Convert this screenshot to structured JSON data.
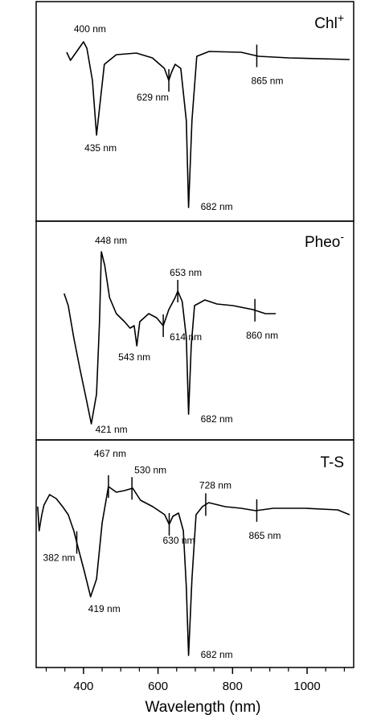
{
  "chart_data": [
    {
      "type": "line",
      "title": "Chl",
      "title_superscript": "+",
      "color": "#000000",
      "xlim": [
        273,
        1125
      ],
      "ylim": [
        0,
        273
      ],
      "x": [
        355,
        365,
        400,
        409,
        424,
        435,
        456,
        488,
        542,
        585,
        617,
        629,
        636,
        646,
        661,
        676,
        682,
        691,
        704,
        737,
        823,
        870,
        952,
        1114
      ],
      "values": [
        210,
        200,
        223,
        215,
        175,
        107,
        195,
        207,
        209,
        203,
        190,
        175,
        185,
        195,
        190,
        125,
        17,
        125,
        205,
        211,
        210,
        205,
        203,
        201
      ],
      "annotations": [
        {
          "label": "400 nm",
          "x": 400,
          "tick": false
        },
        {
          "label": "435 nm",
          "x": 435,
          "tick": false
        },
        {
          "label": "629 nm",
          "x": 629,
          "tick": true
        },
        {
          "label": "682 nm",
          "x": 682,
          "tick": false
        },
        {
          "label": "865 nm",
          "x": 865,
          "tick": true
        }
      ]
    },
    {
      "type": "line",
      "title": "Pheo",
      "title_superscript": "-",
      "color": "#000000",
      "xlim": [
        273,
        1125
      ],
      "ylim": [
        0,
        272
      ],
      "x": [
        348,
        359,
        374,
        391,
        409,
        421,
        435,
        443,
        448,
        457,
        470,
        488,
        510,
        525,
        536,
        543,
        551,
        575,
        596,
        614,
        629,
        646,
        653,
        665,
        676,
        682,
        689,
        698,
        726,
        758,
        801,
        855,
        888,
        916
      ],
      "values": [
        182,
        167,
        127,
        87,
        47,
        20,
        57,
        147,
        234,
        217,
        177,
        157,
        147,
        139,
        142,
        117,
        147,
        157,
        152,
        142,
        162,
        177,
        185,
        172,
        127,
        32,
        117,
        167,
        174,
        169,
        167,
        162,
        157,
        157
      ],
      "annotations": [
        {
          "label": "448 nm",
          "x": 448,
          "tick": false
        },
        {
          "label": "421 nm",
          "x": 421,
          "tick": false
        },
        {
          "label": "543 nm",
          "x": 543,
          "tick": false
        },
        {
          "label": "614 nm",
          "x": 614,
          "tick": true
        },
        {
          "label": "653 nm",
          "x": 653,
          "tick": true
        },
        {
          "label": "682 nm",
          "x": 682,
          "tick": false
        },
        {
          "label": "860 nm",
          "x": 860,
          "tick": true
        }
      ]
    },
    {
      "type": "line",
      "title": "T-S",
      "color": "#000000",
      "xlim": [
        273,
        1125
      ],
      "ylim": [
        0,
        283
      ],
      "x": [
        277,
        281,
        288,
        294,
        309,
        327,
        344,
        359,
        374,
        385,
        402,
        419,
        435,
        450,
        467,
        488,
        510,
        532,
        553,
        586,
        618,
        630,
        640,
        655,
        668,
        676,
        682,
        691,
        702,
        719,
        736,
        780,
        823,
        862,
        909,
        995,
        1082,
        1114
      ],
      "values": [
        200,
        170,
        190,
        202,
        215,
        210,
        200,
        190,
        170,
        150,
        120,
        88,
        110,
        180,
        225,
        218,
        220,
        223,
        208,
        200,
        190,
        178,
        188,
        192,
        170,
        100,
        15,
        110,
        190,
        200,
        205,
        200,
        198,
        195,
        198,
        198,
        196,
        190
      ],
      "annotations": [
        {
          "label": "382 nm",
          "x": 382,
          "tick": true
        },
        {
          "label": "419 nm",
          "x": 419,
          "tick": false
        },
        {
          "label": "467 nm",
          "x": 467,
          "tick": true
        },
        {
          "label": "530 nm",
          "x": 530,
          "tick": true
        },
        {
          "label": "630 nm",
          "x": 630,
          "tick": true
        },
        {
          "label": "682 nm",
          "x": 682,
          "tick": false
        },
        {
          "label": "728 nm",
          "x": 728,
          "tick": true
        },
        {
          "label": "865 nm",
          "x": 865,
          "tick": true
        }
      ],
      "xlabel": "Wavelength (nm)",
      "xticks": [
        400,
        600,
        800,
        1000
      ],
      "xminorticks": [
        300,
        350,
        450,
        500,
        550,
        650,
        700,
        750,
        850,
        900,
        950,
        1050,
        1100
      ]
    }
  ]
}
